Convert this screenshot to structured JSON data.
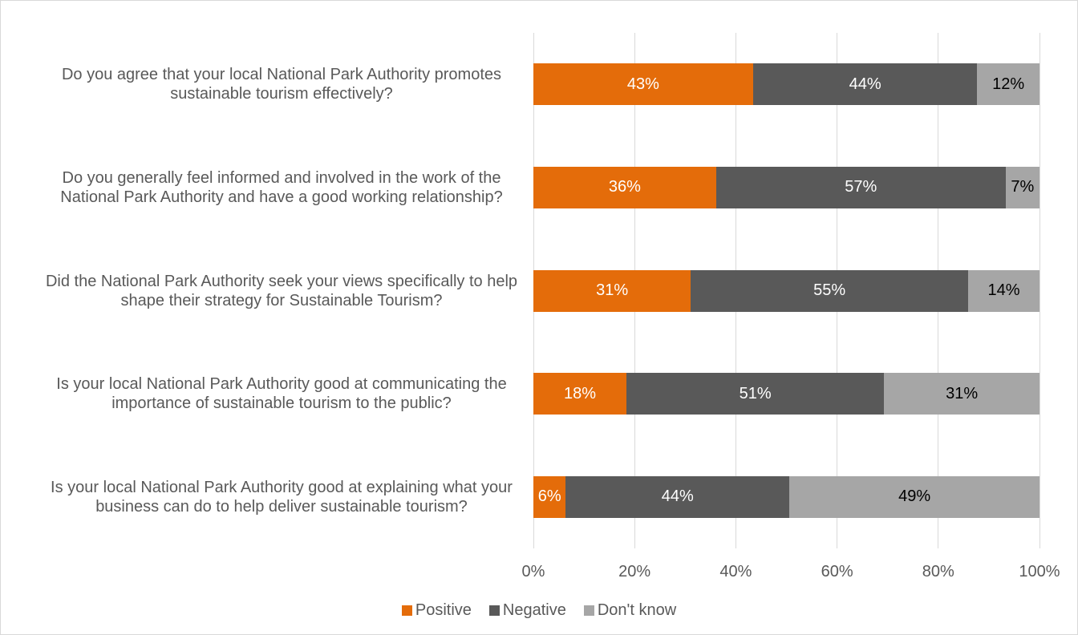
{
  "chart_data": {
    "type": "stacked_bar_horizontal",
    "categories": [
      "Do you agree that your local National Park Authority promotes sustainable tourism effectively?",
      "Do you generally feel informed and involved in the work of the National Park Authority and have a good working relationship?",
      "Did the National Park Authority seek your views specifically to help shape their strategy for Sustainable Tourism?",
      "Is your local National Park Authority good at communicating the importance of sustainable tourism to the public?",
      "Is your local National Park Authority good at explaining what your business can do to help deliver sustainable tourism?"
    ],
    "series": [
      {
        "name": "Positive",
        "color": "#e46c0a",
        "label_color": "#ffffff",
        "values": [
          43.4,
          36.1,
          31.1,
          18.4,
          6.4
        ],
        "value_labels": [
          "43%",
          "36%",
          "31%",
          "18%",
          "6%"
        ]
      },
      {
        "name": "Negative",
        "color": "#595959",
        "label_color": "#ffffff",
        "values": [
          44.3,
          57.2,
          54.8,
          50.9,
          44.2
        ],
        "value_labels": [
          "44%",
          "57%",
          "55%",
          "51%",
          "44%"
        ]
      },
      {
        "name": "Don't know",
        "color": "#a6a6a6",
        "label_color": "#000000",
        "values": [
          12.3,
          6.7,
          14.1,
          30.7,
          49.4
        ],
        "value_labels": [
          "12%",
          "7%",
          "14%",
          "31%",
          "49%"
        ]
      }
    ],
    "xlim": [
      0,
      100
    ],
    "xticks": [
      {
        "value": 0,
        "label": "0%"
      },
      {
        "value": 20,
        "label": "20%"
      },
      {
        "value": 40,
        "label": "40%"
      },
      {
        "value": 60,
        "label": "60%"
      },
      {
        "value": 80,
        "label": "80%"
      },
      {
        "value": 100,
        "label": "100%"
      }
    ],
    "grid": true,
    "legend": "bottom"
  }
}
